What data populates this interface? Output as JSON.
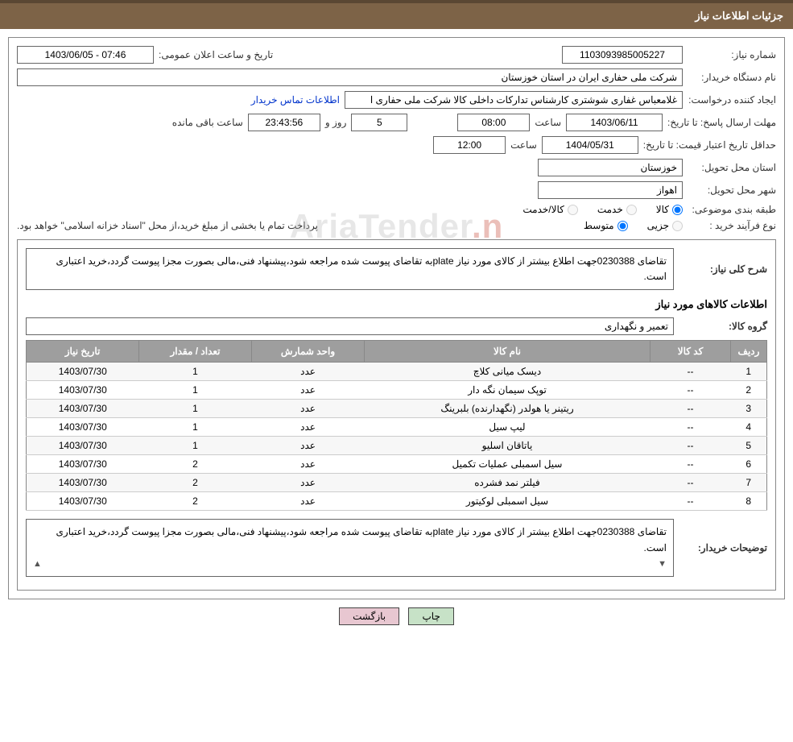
{
  "header": {
    "title": "جزئیات اطلاعات نیاز"
  },
  "need": {
    "number_label": "شماره نیاز:",
    "number": "1103093985005227",
    "public_date_label": "تاریخ و ساعت اعلان عمومی:",
    "public_date": "1403/06/05 - 07:46"
  },
  "buyer": {
    "org_label": "نام دستگاه خریدار:",
    "org": "شرکت ملی حفاری ایران در استان خوزستان",
    "requester_label": "ایجاد کننده درخواست:",
    "requester": "غلامعباس غفاری شوشتری کارشناس تدارکات داخلی کالا شرکت ملی حفاری ا",
    "contact_link": "اطلاعات تماس خریدار"
  },
  "deadline": {
    "reply_label": "مهلت ارسال پاسخ:",
    "to_date_label": "تا تاریخ:",
    "reply_date": "1403/06/11",
    "time_label": "ساعت",
    "reply_time": "08:00",
    "days": "5",
    "days_label": "روز و",
    "remain_time": "23:43:56",
    "remain_label": "ساعت باقی مانده"
  },
  "price_valid": {
    "label": "حداقل تاریخ اعتبار قیمت:",
    "to_date_label": "تا تاریخ:",
    "date": "1404/05/31",
    "time_label": "ساعت",
    "time": "12:00"
  },
  "delivery": {
    "province_label": "استان محل تحویل:",
    "province": "خوزستان",
    "city_label": "شهر محل تحویل:",
    "city": "اهواز"
  },
  "category": {
    "label": "طبقه بندی موضوعی:",
    "opt_goods": "کالا",
    "opt_service": "خدمت",
    "opt_both": "کالا/خدمت"
  },
  "process": {
    "label": "نوع فرآیند خرید :",
    "opt_small": "جزیی",
    "opt_medium": "متوسط",
    "note": "پرداخت تمام یا بخشی از مبلغ خرید،از محل \"اسناد خزانه اسلامی\" خواهد بود."
  },
  "overview": {
    "label": "شرح کلی نیاز:",
    "text": "تقاضای 0230388جهت اطلاع بیشتر از کالای مورد نیاز plateبه تقاضای پیوست شده مراجعه شود،پیشنهاد فنی،مالی بصورت مجزا پیوست گردد،خرید اعتباری است."
  },
  "items_section_title": "اطلاعات کالاهای مورد نیاز",
  "group": {
    "label": "گروه کالا:",
    "value": "تعمیر و نگهداری"
  },
  "table": {
    "headers": {
      "idx": "ردیف",
      "code": "کد کالا",
      "name": "نام کالا",
      "unit": "واحد شمارش",
      "qty": "تعداد / مقدار",
      "date": "تاریخ نیاز"
    },
    "rows": [
      {
        "idx": "1",
        "code": "--",
        "name": "دیسک میانی کلاچ",
        "unit": "عدد",
        "qty": "1",
        "date": "1403/07/30"
      },
      {
        "idx": "2",
        "code": "--",
        "name": "توپک سیمان نگه دار",
        "unit": "عدد",
        "qty": "1",
        "date": "1403/07/30"
      },
      {
        "idx": "3",
        "code": "--",
        "name": "ریتینر یا هولدر (نگهدارنده) بلبرینگ",
        "unit": "عدد",
        "qty": "1",
        "date": "1403/07/30"
      },
      {
        "idx": "4",
        "code": "--",
        "name": "لیپ سیل",
        "unit": "عدد",
        "qty": "1",
        "date": "1403/07/30"
      },
      {
        "idx": "5",
        "code": "--",
        "name": "یاتاقان اسلیو",
        "unit": "عدد",
        "qty": "1",
        "date": "1403/07/30"
      },
      {
        "idx": "6",
        "code": "--",
        "name": "سیل اسمبلی عملیات تکمیل",
        "unit": "عدد",
        "qty": "2",
        "date": "1403/07/30"
      },
      {
        "idx": "7",
        "code": "--",
        "name": "فیلتر نمد فشرده",
        "unit": "عدد",
        "qty": "2",
        "date": "1403/07/30"
      },
      {
        "idx": "8",
        "code": "--",
        "name": "سیل اسمبلی لوکیتور",
        "unit": "عدد",
        "qty": "2",
        "date": "1403/07/30"
      }
    ]
  },
  "buyer_note": {
    "label": "توضیحات خریدار:",
    "text": "تقاضای 0230388جهت اطلاع بیشتر از کالای مورد نیاز plateبه تقاضای پیوست شده مراجعه شود،پیشنهاد فنی،مالی بصورت مجزا پیوست گردد،خرید اعتباری است."
  },
  "buttons": {
    "print": "چاپ",
    "back": "بازگشت"
  },
  "watermark": {
    "text": "AriaTender"
  },
  "scroll": {
    "up": "▲",
    "down": "▼"
  },
  "colors": {
    "header_bg": "#7d6347",
    "header_border": "#5a4733",
    "th_bg": "#9e9e9e",
    "btn_print_bg": "#c7e2c7",
    "btn_back_bg": "#e8c7d1",
    "link": "#0033cc"
  }
}
